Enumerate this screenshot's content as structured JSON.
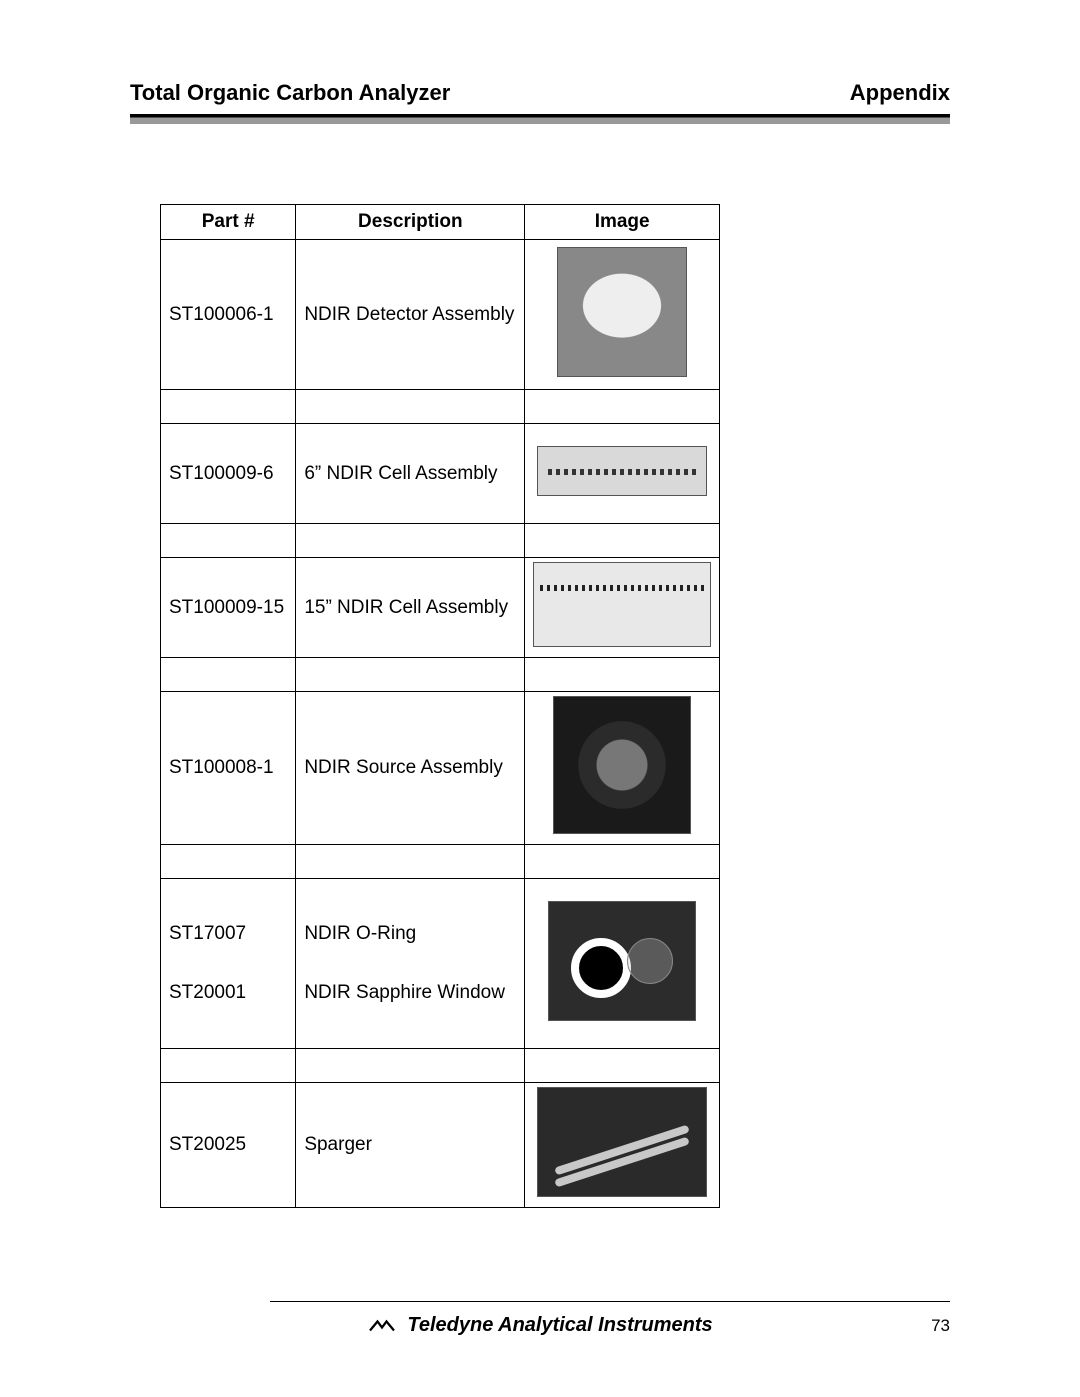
{
  "header": {
    "left": "Total Organic Carbon Analyzer",
    "right": "Appendix"
  },
  "table": {
    "columns": [
      "Part #",
      "Description",
      "Image"
    ],
    "rows": [
      {
        "part": "ST100006-1",
        "desc": "NDIR Detector Assembly",
        "thumb": "th1",
        "rowclass": "rowbig"
      },
      {
        "part": "ST100009-6",
        "desc": "6” NDIR Cell Assembly",
        "thumb": "th2",
        "rowclass": "rowmed"
      },
      {
        "part": "ST100009-15",
        "desc": "15” NDIR Cell Assembly",
        "thumb": "th3",
        "rowclass": "rowmed"
      },
      {
        "part": "ST100008-1",
        "desc": "NDIR Source Assembly",
        "thumb": "th4",
        "rowclass": "rowmed2"
      }
    ],
    "combo": {
      "parts": [
        "ST17007",
        "ST20001"
      ],
      "descs": [
        "NDIR O-Ring",
        "NDIR Sapphire Window"
      ],
      "thumb": "th5",
      "rowclass": "rowcombo"
    },
    "last": {
      "part": "ST20025",
      "desc": "Sparger",
      "thumb": "th6",
      "rowclass": "rowmed"
    }
  },
  "footer": {
    "company": "Teledyne Analytical Instruments",
    "page": "73"
  }
}
